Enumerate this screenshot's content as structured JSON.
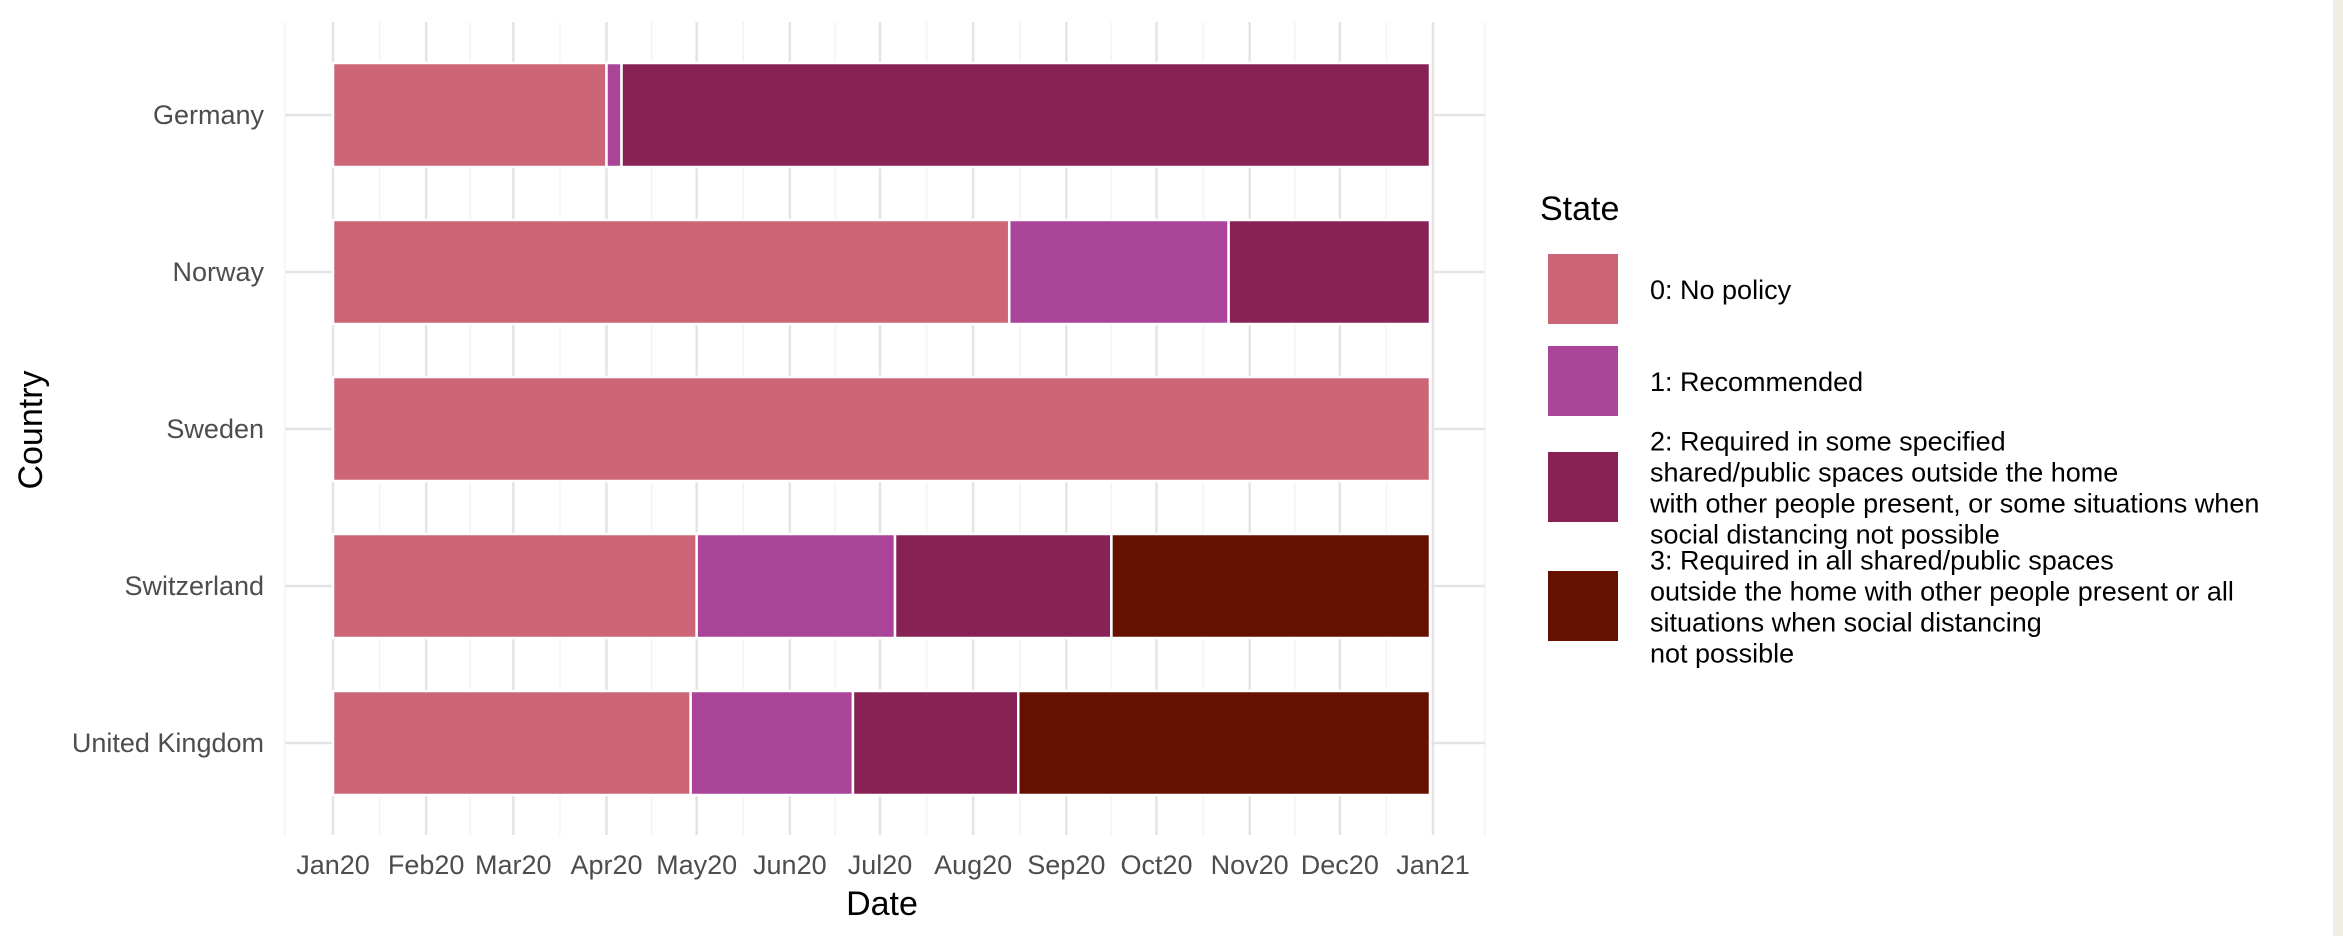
{
  "chart_data": {
    "type": "bar",
    "orientation": "horizontal",
    "stacked": true,
    "xlabel": "Date",
    "ylabel": "Country",
    "x_ticks": [
      "Jan20",
      "Feb20",
      "Mar20",
      "Apr20",
      "May20",
      "Jun20",
      "Jul20",
      "Aug20",
      "Sep20",
      "Oct20",
      "Nov20",
      "Dec20",
      "Jan21"
    ],
    "xlim": [
      "2020-01-01",
      "2021-01-01"
    ],
    "grid": true,
    "legend": {
      "title": "State",
      "placement": "right",
      "entries": [
        {
          "state": 0,
          "lines": [
            "0: No policy"
          ],
          "color": "#cc6677"
        },
        {
          "state": 1,
          "lines": [
            "1: Recommended"
          ],
          "color": "#aa4499"
        },
        {
          "state": 2,
          "lines": [
            "2: Required in some specified",
            "shared/public spaces outside the home",
            "with other people present, or some situations when",
            "social distancing not possible"
          ],
          "color": "#882255"
        },
        {
          "state": 3,
          "lines": [
            "3: Required in all shared/public spaces",
            "outside the home with other people present or all",
            "situations when social distancing",
            "not possible"
          ],
          "color": "#661100"
        }
      ]
    },
    "countries": [
      {
        "name": "Germany",
        "segments": [
          {
            "state": 0,
            "start": "2020-01-01",
            "end": "2020-04-01"
          },
          {
            "state": 1,
            "start": "2020-04-01",
            "end": "2020-04-06"
          },
          {
            "state": 2,
            "start": "2020-04-06",
            "end": "2020-12-31"
          }
        ]
      },
      {
        "name": "Norway",
        "segments": [
          {
            "state": 0,
            "start": "2020-01-01",
            "end": "2020-08-13"
          },
          {
            "state": 1,
            "start": "2020-08-13",
            "end": "2020-10-25"
          },
          {
            "state": 2,
            "start": "2020-10-25",
            "end": "2020-12-31"
          }
        ]
      },
      {
        "name": "Sweden",
        "segments": [
          {
            "state": 0,
            "start": "2020-01-01",
            "end": "2020-12-31"
          }
        ]
      },
      {
        "name": "Switzerland",
        "segments": [
          {
            "state": 0,
            "start": "2020-01-01",
            "end": "2020-05-01"
          },
          {
            "state": 1,
            "start": "2020-05-01",
            "end": "2020-07-06"
          },
          {
            "state": 2,
            "start": "2020-07-06",
            "end": "2020-09-16"
          },
          {
            "state": 3,
            "start": "2020-09-16",
            "end": "2020-12-31"
          }
        ]
      },
      {
        "name": "United Kingdom",
        "segments": [
          {
            "state": 0,
            "start": "2020-01-01",
            "end": "2020-04-29"
          },
          {
            "state": 1,
            "start": "2020-04-29",
            "end": "2020-06-22"
          },
          {
            "state": 2,
            "start": "2020-06-22",
            "end": "2020-08-16"
          },
          {
            "state": 3,
            "start": "2020-08-16",
            "end": "2020-12-31"
          }
        ]
      }
    ]
  }
}
